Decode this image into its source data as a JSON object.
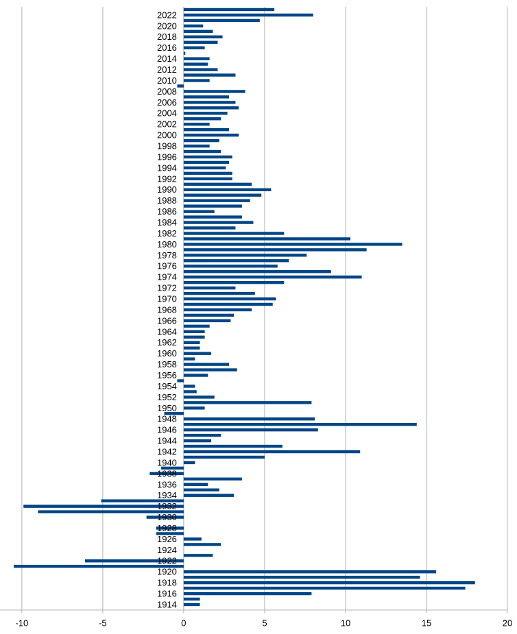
{
  "chart_data": {
    "type": "barh",
    "color": "#004586",
    "categories": [
      "1914",
      null,
      "1916",
      null,
      "1918",
      null,
      "1920",
      null,
      "1922",
      null,
      "1924",
      null,
      "1926",
      null,
      "1928",
      null,
      "1930",
      null,
      "1932",
      null,
      "1934",
      null,
      "1936",
      null,
      "1938",
      null,
      "1940",
      null,
      "1942",
      null,
      "1944",
      null,
      "1946",
      null,
      "1948",
      null,
      "1950",
      null,
      "1952",
      null,
      "1954",
      null,
      "1956",
      null,
      "1958",
      null,
      "1960",
      null,
      "1962",
      null,
      "1964",
      null,
      "1966",
      null,
      "1968",
      null,
      "1970",
      null,
      "1972",
      null,
      "1974",
      null,
      "1976",
      null,
      "1978",
      null,
      "1980",
      null,
      "1982",
      null,
      "1984",
      null,
      "1986",
      null,
      "1988",
      null,
      "1990",
      null,
      "1992",
      null,
      "1994",
      null,
      "1996",
      null,
      "1998",
      null,
      "2000",
      null,
      "2002",
      null,
      "2004",
      null,
      "2006",
      null,
      "2008",
      null,
      "2010",
      null,
      "2012",
      null,
      "2014",
      null,
      "2016",
      null,
      "2018",
      null,
      "2020",
      null,
      "2022",
      null
    ],
    "values": [
      1.0,
      1.0,
      7.9,
      17.4,
      18.0,
      14.6,
      15.6,
      -10.5,
      -6.1,
      1.8,
      0.0,
      2.3,
      1.1,
      -1.7,
      -1.7,
      0.0,
      -2.3,
      -9.0,
      -9.9,
      -5.1,
      3.1,
      2.2,
      1.5,
      3.6,
      -2.1,
      -1.4,
      0.7,
      5.0,
      10.9,
      6.1,
      1.7,
      2.3,
      8.3,
      14.4,
      8.1,
      -1.2,
      1.3,
      7.9,
      1.9,
      0.8,
      0.7,
      -0.4,
      1.5,
      3.3,
      2.8,
      0.7,
      1.7,
      1.0,
      1.0,
      1.3,
      1.3,
      1.6,
      2.9,
      3.1,
      4.2,
      5.5,
      5.7,
      4.4,
      3.2,
      6.2,
      11.0,
      9.1,
      5.8,
      6.5,
      7.6,
      11.3,
      13.5,
      10.3,
      6.2,
      3.2,
      4.3,
      3.6,
      1.9,
      3.6,
      4.1,
      4.8,
      5.4,
      4.2,
      3.0,
      3.0,
      2.6,
      2.8,
      3.0,
      2.3,
      1.6,
      2.2,
      3.4,
      2.8,
      1.6,
      2.3,
      2.7,
      3.4,
      3.2,
      2.8,
      3.8,
      -0.4,
      1.6,
      3.2,
      2.1,
      1.5,
      1.6,
      0.1,
      1.3,
      2.1,
      2.4,
      1.8,
      1.2,
      4.7,
      8.0,
      5.6
    ],
    "xlim": [
      -11.35,
      20
    ],
    "xticks": [
      -10,
      -5,
      0,
      5,
      10,
      15,
      20
    ],
    "grid": true
  }
}
